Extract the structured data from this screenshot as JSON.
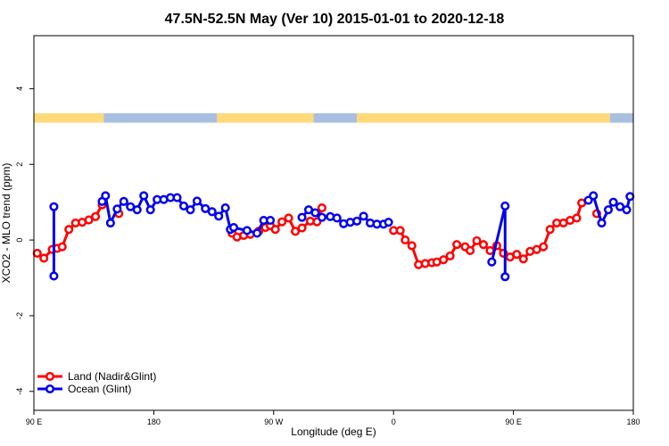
{
  "chart_data": {
    "type": "line",
    "title": "47.5N-52.5N May (Ver 10)   2015-01-01 to 2020-12-18",
    "xlabel": "Longitude (deg E)",
    "ylabel": "XCO2 - MLO trend (ppm)",
    "xlim": [
      90,
      450
    ],
    "ylim": [
      -4.5,
      5.4
    ],
    "x_ticks": [
      {
        "value": 90,
        "label": "90 E"
      },
      {
        "value": 162,
        "label": "180"
      },
      {
        "value": 234,
        "label": "90 W"
      },
      {
        "value": 306,
        "label": "0"
      },
      {
        "value": 378,
        "label": "90 E"
      },
      {
        "value": 450,
        "label": "180"
      }
    ],
    "y_ticks": [
      {
        "value": -4,
        "label": "-4"
      },
      {
        "value": -2,
        "label": "-2"
      },
      {
        "value": 0,
        "label": "0"
      },
      {
        "value": 2,
        "label": "2"
      },
      {
        "value": 4,
        "label": "4"
      }
    ],
    "land_ocean_strip": {
      "y_range": [
        3.1,
        3.35
      ],
      "land_color": "#FFD97A",
      "ocean_color": "#A9BFE0",
      "segments": [
        {
          "type": "land",
          "from": 90,
          "to": 132
        },
        {
          "type": "ocean",
          "from": 132,
          "to": 200
        },
        {
          "type": "land",
          "from": 200,
          "to": 258
        },
        {
          "type": "ocean",
          "from": 258,
          "to": 284
        },
        {
          "type": "land",
          "from": 284,
          "to": 436
        },
        {
          "type": "ocean",
          "from": 436,
          "to": 450
        }
      ]
    },
    "series": [
      {
        "name": "Land (Nadir&Glint)",
        "color": "#FF0000",
        "x": [
          92,
          96,
          101,
          104,
          107,
          111,
          115,
          119,
          123,
          127,
          131,
          141,
          209,
          212,
          216,
          220,
          225,
          229,
          232,
          235,
          239,
          243,
          247,
          251,
          256,
          260,
          263,
          306,
          310,
          313,
          317,
          321,
          325,
          329,
          332,
          336,
          340,
          344,
          349,
          352,
          356,
          360,
          364,
          368,
          372,
          376,
          380,
          384,
          388,
          392,
          396,
          400,
          404,
          408,
          412,
          416,
          419,
          428
        ],
        "y": [
          -0.35,
          -0.48,
          -0.25,
          -0.22,
          -0.18,
          0.28,
          0.45,
          0.47,
          0.53,
          0.62,
          0.93,
          0.7,
          0.18,
          0.08,
          0.12,
          0.15,
          0.23,
          0.33,
          0.38,
          0.28,
          0.48,
          0.58,
          0.23,
          0.32,
          0.5,
          0.48,
          0.85,
          0.25,
          0.25,
          0.0,
          -0.15,
          -0.65,
          -0.62,
          -0.6,
          -0.58,
          -0.52,
          -0.42,
          -0.12,
          -0.18,
          -0.28,
          -0.02,
          -0.12,
          -0.28,
          -0.15,
          -0.35,
          -0.45,
          -0.38,
          -0.5,
          -0.3,
          -0.25,
          -0.18,
          0.28,
          0.45,
          0.45,
          0.52,
          0.58,
          0.98,
          0.7
        ]
      },
      {
        "name": "Ocean (Glint)",
        "color": "#0000EE",
        "x": [
          102,
          102,
          131,
          133,
          136,
          140,
          144,
          148,
          152,
          156,
          160,
          164,
          168,
          172,
          176,
          180,
          184,
          188,
          193,
          197,
          201,
          205,
          208,
          210,
          218,
          224,
          228,
          232,
          251,
          255,
          259,
          263,
          268,
          272,
          276,
          280,
          284,
          288,
          292,
          296,
          300,
          303,
          365,
          373,
          373,
          423,
          426,
          431,
          435,
          438,
          442,
          446,
          448
        ],
        "y": [
          0.88,
          -0.95,
          1.02,
          1.17,
          0.45,
          0.82,
          1.02,
          0.88,
          0.8,
          1.17,
          0.8,
          1.07,
          1.07,
          1.12,
          1.12,
          0.9,
          0.8,
          1.03,
          0.83,
          0.75,
          0.63,
          0.85,
          0.28,
          0.33,
          0.25,
          0.18,
          0.52,
          0.52,
          0.6,
          0.8,
          0.72,
          0.6,
          0.62,
          0.58,
          0.43,
          0.47,
          0.5,
          0.63,
          0.45,
          0.42,
          0.42,
          0.47,
          -0.58,
          0.9,
          -0.97,
          1.05,
          1.17,
          0.45,
          0.8,
          1.0,
          0.88,
          0.8,
          1.15
        ]
      }
    ],
    "legend": {
      "placement": "bottom-left",
      "entries": [
        "Land (Nadir&Glint)",
        "Ocean (Glint)"
      ]
    },
    "grid": false
  }
}
